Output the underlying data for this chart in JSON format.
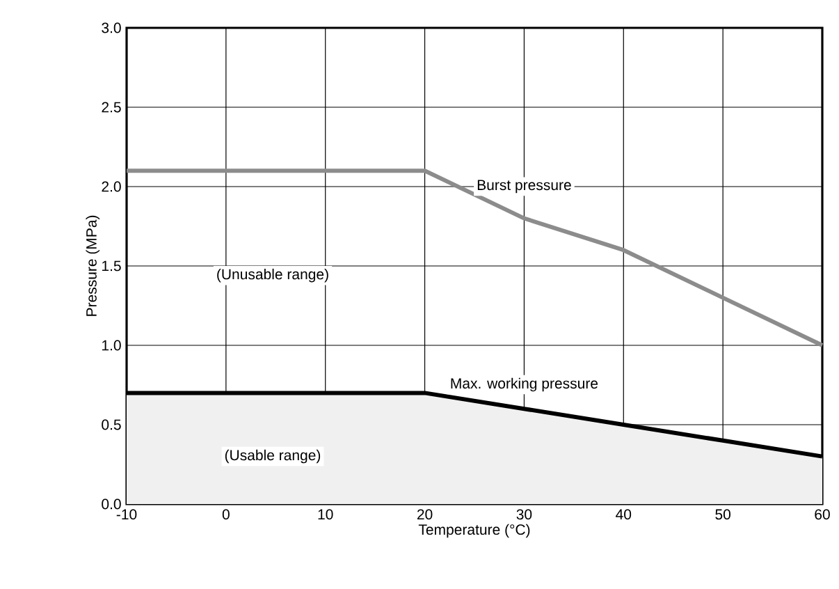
{
  "chart_data": {
    "type": "line",
    "xlabel": "Temperature (°C)",
    "ylabel": "Pressure (MPa)",
    "x": [
      -10,
      20,
      30,
      40,
      50,
      60
    ],
    "series": [
      {
        "name": "Burst pressure",
        "color": "#8c8c8c",
        "values": [
          2.1,
          2.1,
          1.8,
          1.6,
          1.3,
          1.0
        ]
      },
      {
        "name": "Max. working pressure",
        "type": "area",
        "color": "#000000",
        "values": [
          0.7,
          0.7,
          0.6,
          0.5,
          0.4,
          0.3
        ]
      }
    ],
    "annotations": [
      "(Unusable range)",
      "(Usable range)"
    ],
    "xlim": [
      -10,
      60
    ],
    "xticks": [
      {
        "value": -10,
        "label": "-10"
      },
      0,
      10,
      20,
      30,
      40,
      50,
      60
    ],
    "ylim": [
      0,
      3
    ],
    "yticks": [
      {
        "value": 0,
        "label": "0.0"
      },
      {
        "value": 0.5,
        "label": "0.5"
      },
      {
        "value": 1,
        "label": "1.0"
      },
      {
        "value": 1.5,
        "label": "1.5"
      },
      {
        "value": 2,
        "label": "2.0"
      },
      {
        "value": 2.5,
        "label": "2.5"
      },
      {
        "value": 3,
        "label": "3.0"
      }
    ],
    "grid": true,
    "legend": false
  }
}
